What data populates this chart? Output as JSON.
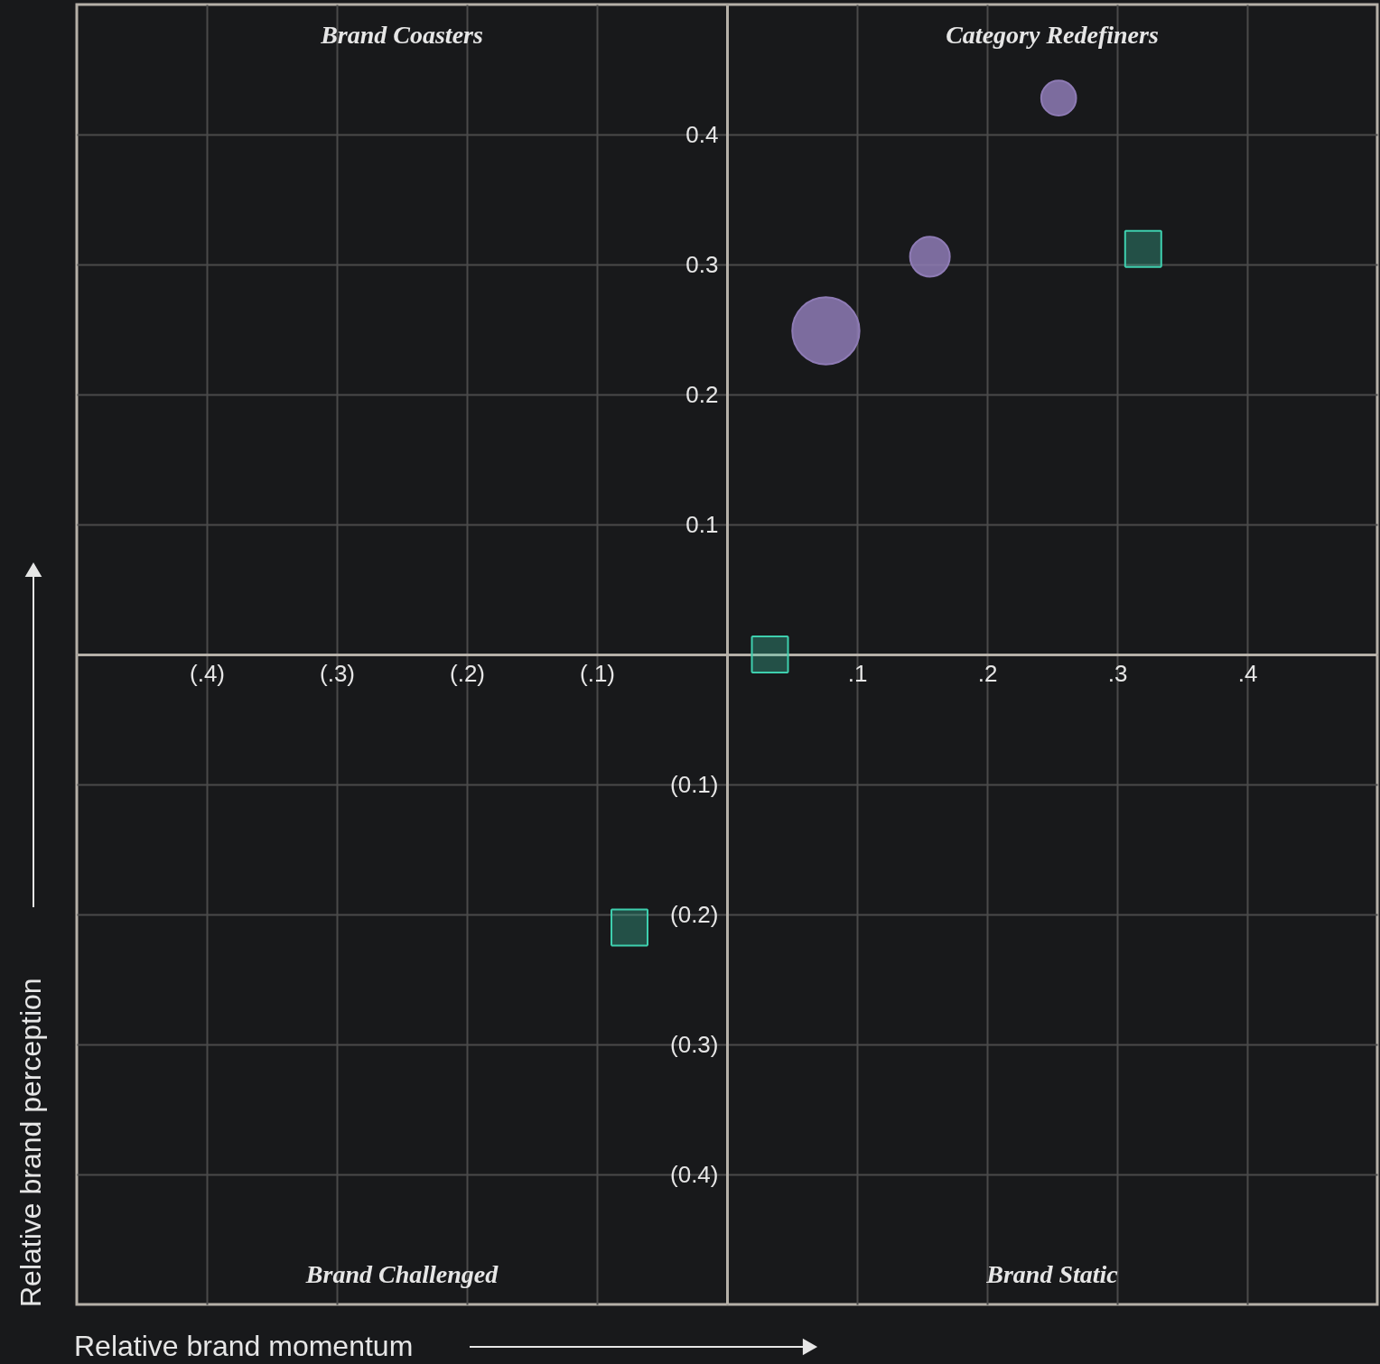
{
  "chart_data": {
    "type": "scatter",
    "xlabel": "Relative brand momentum",
    "ylabel": "Relative brand perception",
    "annotations": [
      "Brand Coasters",
      "Category Redefiners",
      "Brand Challenged",
      "Brand Static"
    ],
    "xlim": [
      -0.5,
      0.5
    ],
    "ylim": [
      -0.5,
      0.5
    ],
    "xticks": [
      {
        "value": -0.4,
        "label": "(.4)"
      },
      {
        "value": -0.3,
        "label": "(.3)"
      },
      {
        "value": -0.2,
        "label": "(.2)"
      },
      {
        "value": -0.1,
        "label": "(.1)"
      },
      {
        "value": 0,
        "label": null
      },
      {
        "value": 0.1,
        "label": ".1"
      },
      {
        "value": 0.2,
        "label": ".2"
      },
      {
        "value": 0.3,
        "label": ".3"
      },
      {
        "value": 0.4,
        "label": ".4"
      }
    ],
    "yticks": [
      {
        "value": -0.4,
        "label": "(0.4)"
      },
      {
        "value": -0.3,
        "label": "(0.3)"
      },
      {
        "value": -0.2,
        "label": "(0.2)"
      },
      {
        "value": -0.1,
        "label": "(0.1)"
      },
      {
        "value": 0,
        "label": null
      },
      0.1,
      0.2,
      0.3,
      0.4
    ],
    "grid": true,
    "series": [
      {
        "type": "bubble",
        "color": "#8e7bb5",
        "marker": "circle",
        "x": [
          0.076,
          0.156,
          0.255
        ],
        "values": [
          0.249,
          0.306,
          0.428
        ],
        "sizes": [
          1,
          0.35,
          0.27
        ]
      },
      {
        "type": "scatter",
        "color": "#3ecfae",
        "marker": "square",
        "x": [
          0.033,
          0.32,
          -0.075
        ],
        "values": [
          0.0,
          0.312,
          -0.21
        ]
      }
    ]
  }
}
